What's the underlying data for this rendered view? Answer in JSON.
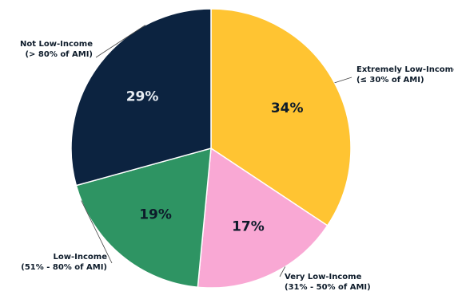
{
  "chart_data": {
    "type": "pie",
    "title": "",
    "start": "top",
    "direction": "clockwise",
    "slices": [
      {
        "label_line1": "Extremely Low-Income",
        "label_line2": "(≤ 30% of AMI)",
        "value": 34,
        "value_label": "34%",
        "color": "#ffc432",
        "text_color": "#0d1b2a",
        "key": "extremely-low-income"
      },
      {
        "label_line1": "Very Low-Income",
        "label_line2": "(31% - 50% of AMI)",
        "value": 17,
        "value_label": "17%",
        "color": "#f9a8d4",
        "text_color": "#0d1b2a",
        "key": "very-low-income"
      },
      {
        "label_line1": "Low-Income",
        "label_line2": "(51% - 80% of AMI)",
        "value": 19,
        "value_label": "19%",
        "color": "#2e9463",
        "text_color": "#0d1b2a",
        "key": "low-income"
      },
      {
        "label_line1": "Not Low-Income",
        "label_line2": "(> 80% of AMI)",
        "value": 29,
        "value_label": "29%",
        "color": "#0c2340",
        "text_color": "#e8edf3",
        "key": "not-low-income"
      }
    ]
  }
}
